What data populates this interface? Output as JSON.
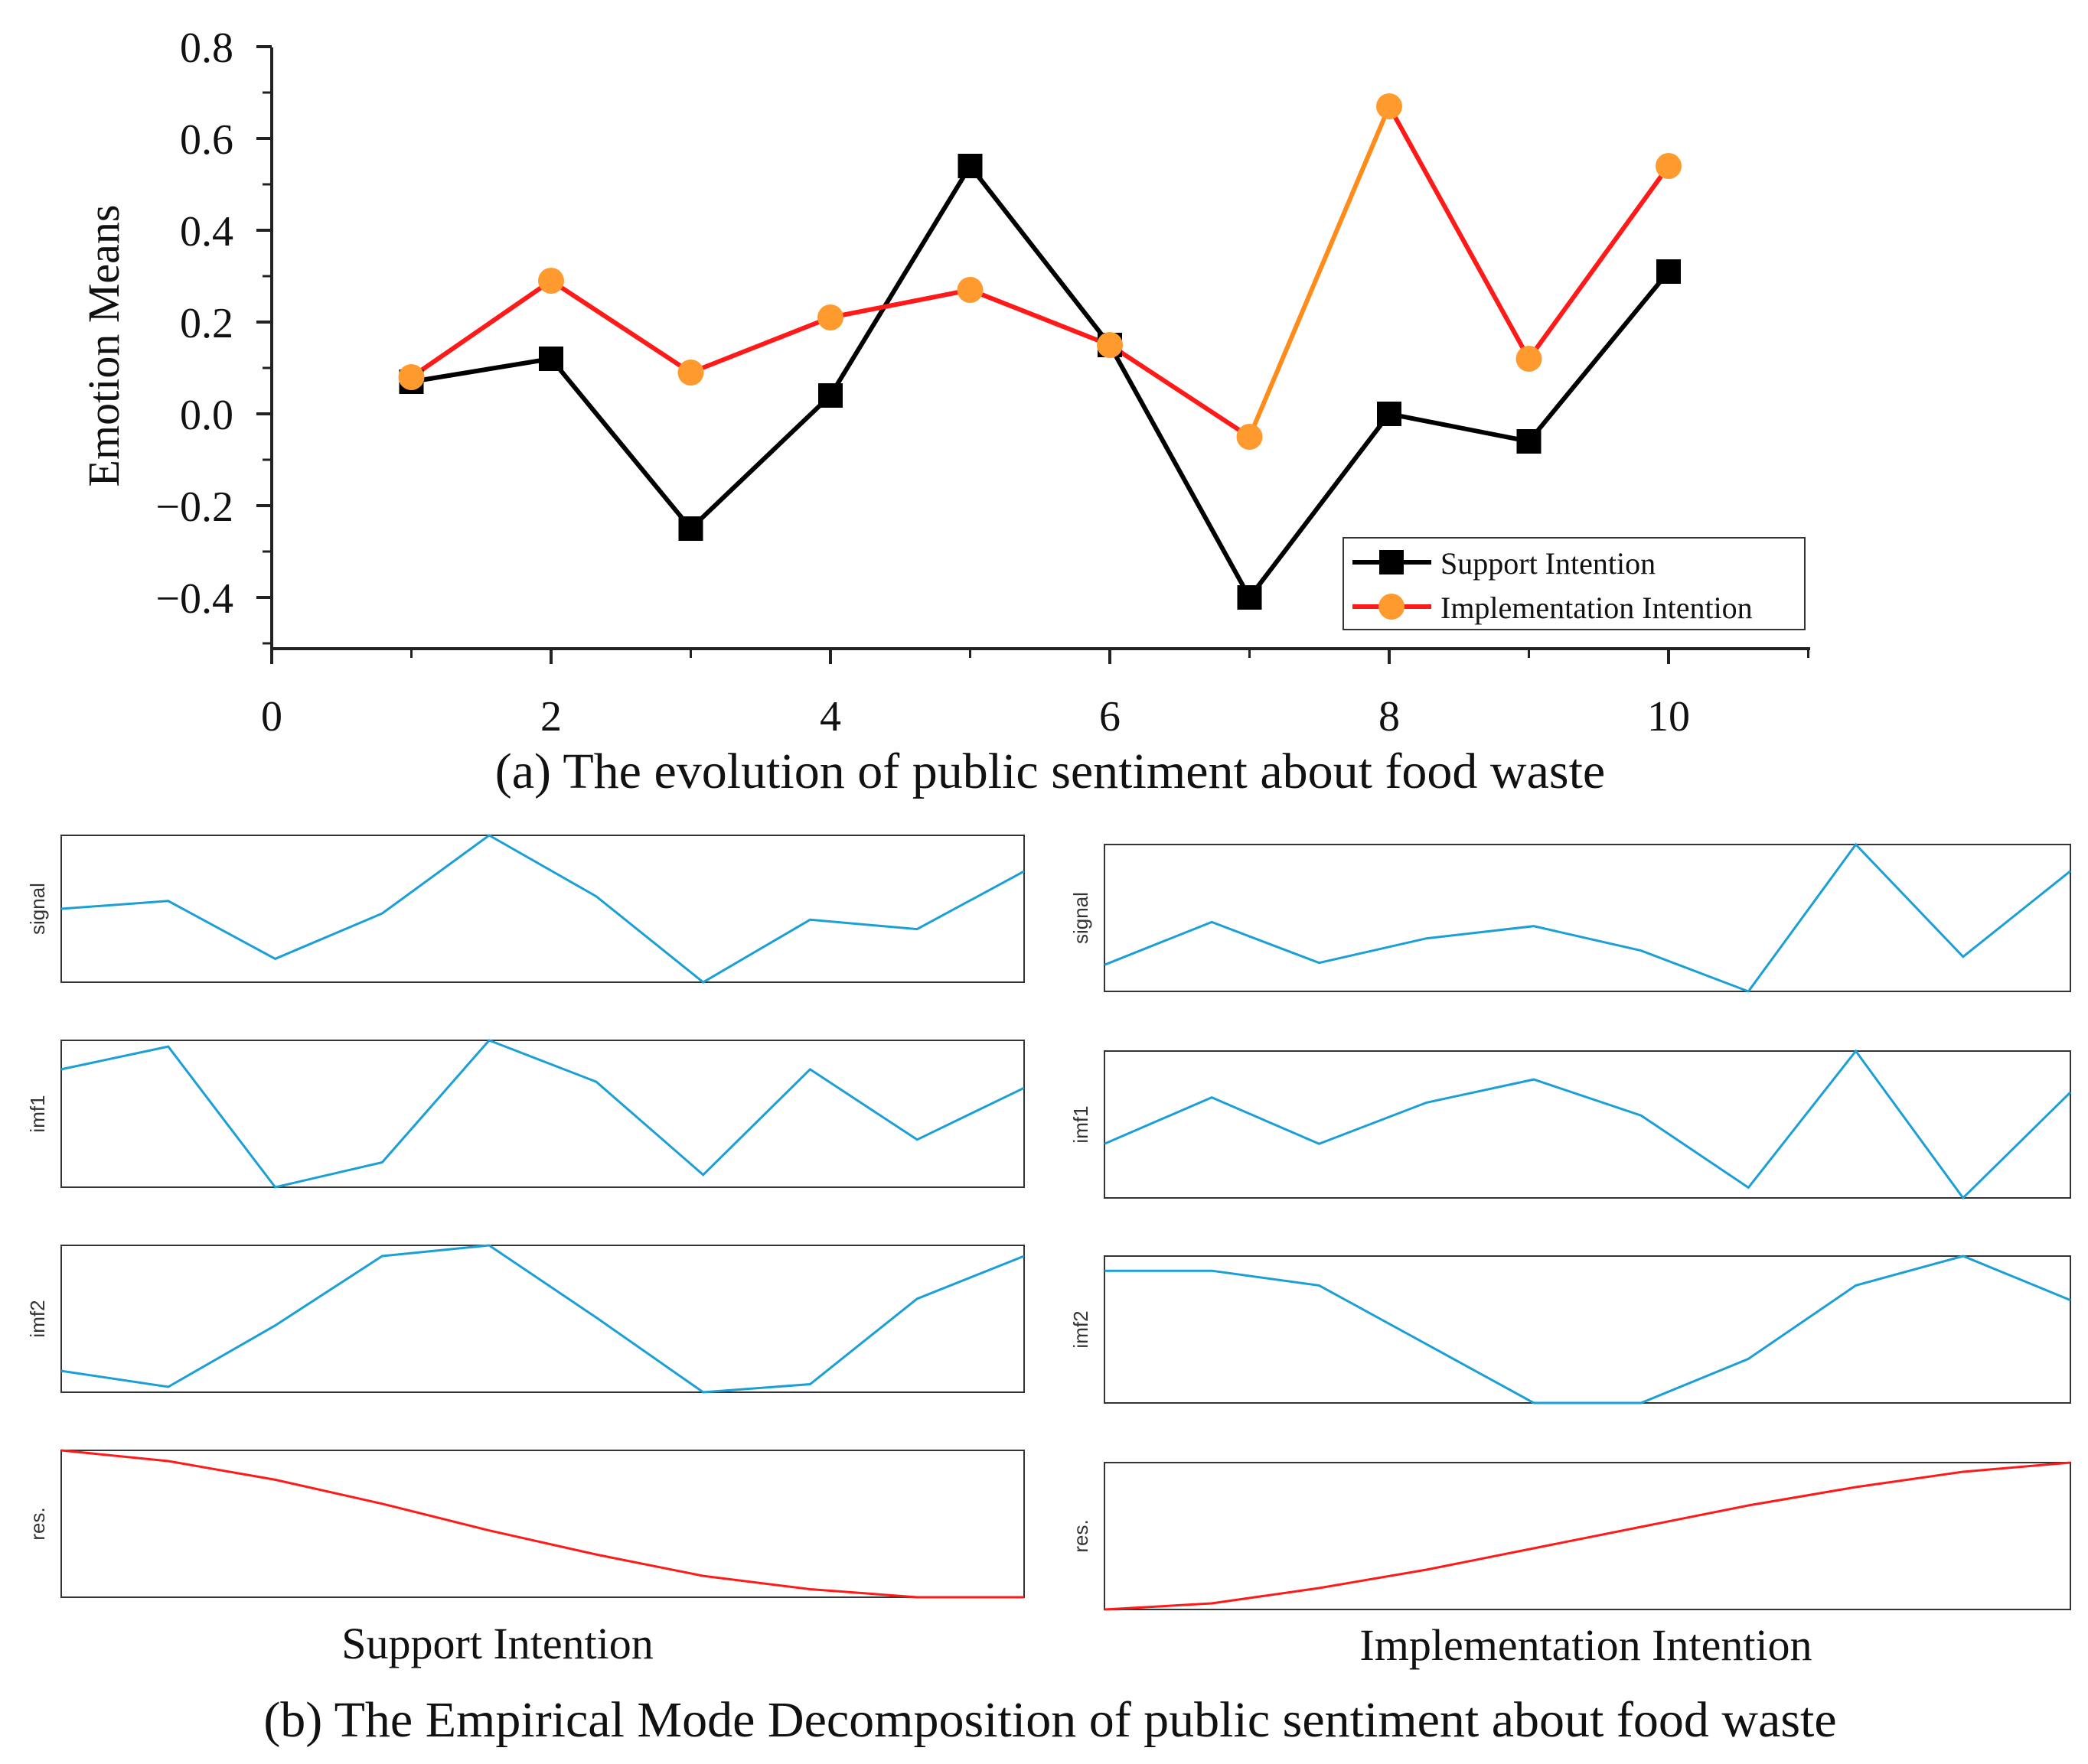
{
  "chart_data": [
    {
      "type": "line",
      "title": "(a) The evolution of public sentiment about food waste",
      "xlabel": "",
      "ylabel": "Emotion Means",
      "xlim": [
        0,
        11
      ],
      "ylim": [
        -0.5,
        0.8
      ],
      "xticks": [
        0,
        2,
        4,
        6,
        8,
        10
      ],
      "xtick_labels": [
        "0",
        "2",
        "4",
        "6",
        "8",
        "10"
      ],
      "yticks": [
        0.8,
        0.6,
        0.4,
        0.2,
        0.0,
        -0.2,
        -0.4
      ],
      "ytick_labels": [
        "0.8",
        "0.6",
        "0.4",
        "0.2",
        "0.0",
        "−0.2",
        "−0.4"
      ],
      "x": [
        1,
        2,
        3,
        4,
        5,
        6,
        7,
        8,
        9,
        10
      ],
      "legend_position": "bottom-right",
      "series": [
        {
          "name": "Support Intention",
          "values": [
            0.07,
            0.12,
            -0.25,
            0.04,
            0.54,
            0.15,
            -0.4,
            0.0,
            -0.06,
            0.31
          ],
          "line_color": "#000000",
          "marker": "square",
          "marker_color": "#000000"
        },
        {
          "name": "Implementation Intention",
          "values": [
            0.08,
            0.29,
            0.09,
            0.21,
            0.27,
            0.15,
            -0.05,
            0.67,
            0.12,
            0.54
          ],
          "line_color": "#ff1a1a",
          "alt_segment_color": "#ff8c1a",
          "marker": "circle",
          "marker_color": "#ff9a2e"
        }
      ]
    },
    {
      "type": "line",
      "title": "(b) The Empirical Mode Decomposition of public sentiment about food waste",
      "columns": [
        {
          "name": "Support Intention",
          "panels": [
            {
              "label": "signal",
              "color": "#1a9fd6",
              "values": [
                0.07,
                0.12,
                -0.25,
                0.04,
                0.54,
                0.15,
                -0.4,
                0.0,
                -0.06,
                0.31
              ]
            },
            {
              "label": "imf1",
              "color": "#1a9fd6",
              "values": [
                0.24,
                0.35,
                -0.33,
                -0.21,
                0.38,
                0.18,
                -0.27,
                0.24,
                -0.1,
                0.15
              ]
            },
            {
              "label": "imf2",
              "color": "#1a9fd6",
              "values": [
                -0.17,
                -0.23,
                0.0,
                0.26,
                0.3,
                0.03,
                -0.25,
                -0.22,
                0.1,
                0.26
              ]
            },
            {
              "label": "res.",
              "color": "#ff1a1a",
              "values": [
                0.22,
                0.18,
                0.11,
                0.02,
                -0.08,
                -0.17,
                -0.25,
                -0.3,
                -0.33,
                -0.33
              ]
            }
          ]
        },
        {
          "name": "Implementation Intention",
          "panels": [
            {
              "label": "signal",
              "color": "#1a9fd6",
              "values": [
                0.08,
                0.29,
                0.09,
                0.21,
                0.27,
                0.15,
                -0.05,
                0.67,
                0.12,
                0.54
              ]
            },
            {
              "label": "imf1",
              "color": "#1a9fd6",
              "values": [
                0.02,
                0.2,
                0.02,
                0.18,
                0.27,
                0.13,
                -0.15,
                0.38,
                -0.19,
                0.22
              ]
            },
            {
              "label": "imf2",
              "color": "#1a9fd6",
              "values": [
                0.05,
                0.05,
                0.04,
                0.0,
                -0.04,
                -0.04,
                -0.01,
                0.04,
                0.06,
                0.03
              ]
            },
            {
              "label": "res.",
              "color": "#ff1a1a",
              "values": [
                -0.25,
                -0.23,
                -0.18,
                -0.12,
                -0.05,
                0.02,
                0.09,
                0.15,
                0.2,
                0.23
              ]
            }
          ]
        }
      ]
    }
  ]
}
